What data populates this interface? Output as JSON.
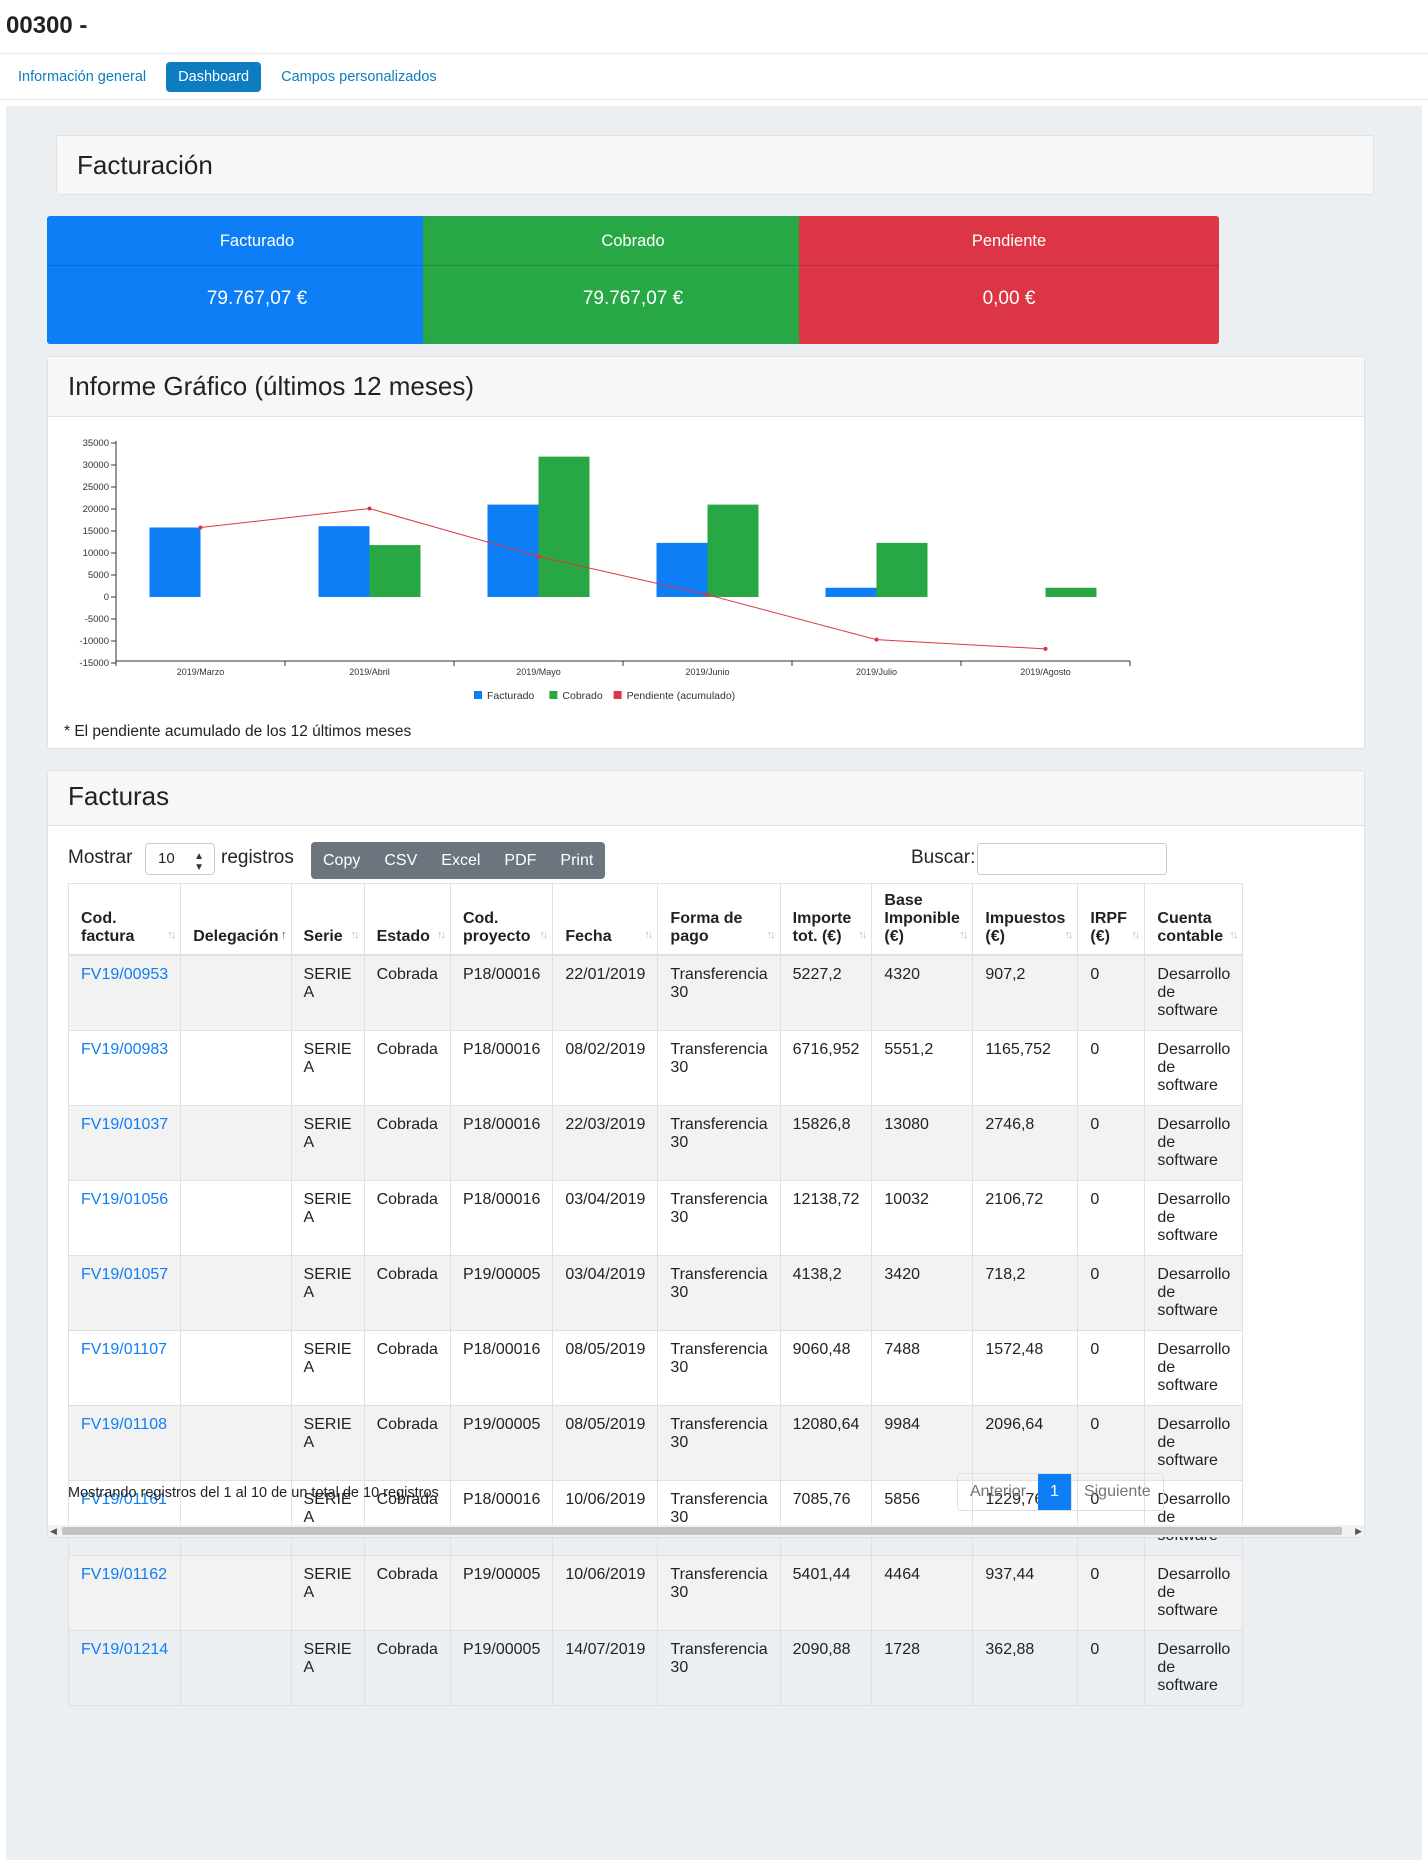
{
  "header": {
    "title": "00300 -"
  },
  "tabs": [
    {
      "label": "Información general",
      "active": false
    },
    {
      "label": "Dashboard",
      "active": true
    },
    {
      "label": "Campos personalizados",
      "active": false
    }
  ],
  "facturacion": {
    "title": "Facturación",
    "stats": [
      {
        "label": "Facturado",
        "value": "79.767,07 €",
        "color": "#0e7ef6"
      },
      {
        "label": "Cobrado",
        "value": "79.767,07 €",
        "color": "#27a844"
      },
      {
        "label": "Pendiente",
        "value": "0,00 €",
        "color": "#dc3545"
      }
    ]
  },
  "informe": {
    "title": "Informe Gráfico (últimos 12 meses)",
    "footnote": "* El pendiente acumulado de los 12 últimos meses"
  },
  "chart_data": {
    "type": "bar",
    "categories": [
      "2019/Marzo",
      "2019/Abril",
      "2019/Mayo",
      "2019/Junio",
      "2019/Julio",
      "2019/Agosto"
    ],
    "series": [
      {
        "name": "Facturado",
        "type": "bar",
        "color": "#0e7ef6",
        "values": [
          15800,
          16100,
          21000,
          12300,
          2100,
          0
        ]
      },
      {
        "name": "Cobrado",
        "type": "bar",
        "color": "#27a844",
        "values": [
          0,
          11800,
          31900,
          21000,
          12300,
          2100
        ]
      },
      {
        "name": "Pendiente (acumulado)",
        "type": "line",
        "color": "#dc3545",
        "values": [
          15800,
          20100,
          9200,
          500,
          -9700,
          -11800
        ]
      }
    ],
    "yticks": [
      35000,
      30000,
      25000,
      20000,
      15000,
      10000,
      5000,
      0,
      -5000,
      -10000,
      -15000
    ],
    "ylim": [
      -15000,
      35000
    ],
    "legend": "bottom"
  },
  "facturas": {
    "title": "Facturas",
    "show_label": "Mostrar",
    "page_size": "10",
    "records_label": "registros",
    "buttons": [
      "Copy",
      "CSV",
      "Excel",
      "PDF",
      "Print"
    ],
    "search_label": "Buscar:",
    "search_value": "",
    "columns": [
      {
        "l1": "Cod.",
        "l2": "factura"
      },
      {
        "l1": "",
        "l2": "Delegación"
      },
      {
        "l1": "",
        "l2": "Serie"
      },
      {
        "l1": "",
        "l2": "Estado"
      },
      {
        "l1": "Cod.",
        "l2": "proyecto"
      },
      {
        "l1": "",
        "l2": "Fecha"
      },
      {
        "l1": "Forma de",
        "l2": "pago"
      },
      {
        "l1": "Importe",
        "l2": "tot. (€)"
      },
      {
        "l1": "Base Imponible",
        "l2": "(€)"
      },
      {
        "l1": "Impuestos",
        "l2": "(€)"
      },
      {
        "l1": "IRPF",
        "l2": "(€)"
      },
      {
        "l1": "Cuenta",
        "l2": "contable"
      }
    ],
    "rows": [
      [
        "FV19/00953",
        "",
        "SERIE A",
        "Cobrada",
        "P18/00016",
        "22/01/2019",
        "Transferencia 30",
        "5227,2",
        "4320",
        "907,2",
        "0",
        "Desarrollo de software"
      ],
      [
        "FV19/00983",
        "",
        "SERIE A",
        "Cobrada",
        "P18/00016",
        "08/02/2019",
        "Transferencia 30",
        "6716,952",
        "5551,2",
        "1165,752",
        "0",
        "Desarrollo de software"
      ],
      [
        "FV19/01037",
        "",
        "SERIE A",
        "Cobrada",
        "P18/00016",
        "22/03/2019",
        "Transferencia 30",
        "15826,8",
        "13080",
        "2746,8",
        "0",
        "Desarrollo de software"
      ],
      [
        "FV19/01056",
        "",
        "SERIE A",
        "Cobrada",
        "P18/00016",
        "03/04/2019",
        "Transferencia 30",
        "12138,72",
        "10032",
        "2106,72",
        "0",
        "Desarrollo de software"
      ],
      [
        "FV19/01057",
        "",
        "SERIE A",
        "Cobrada",
        "P19/00005",
        "03/04/2019",
        "Transferencia 30",
        "4138,2",
        "3420",
        "718,2",
        "0",
        "Desarrollo de software"
      ],
      [
        "FV19/01107",
        "",
        "SERIE A",
        "Cobrada",
        "P18/00016",
        "08/05/2019",
        "Transferencia 30",
        "9060,48",
        "7488",
        "1572,48",
        "0",
        "Desarrollo de software"
      ],
      [
        "FV19/01108",
        "",
        "SERIE A",
        "Cobrada",
        "P19/00005",
        "08/05/2019",
        "Transferencia 30",
        "12080,64",
        "9984",
        "2096,64",
        "0",
        "Desarrollo de software"
      ],
      [
        "FV19/01161",
        "",
        "SERIE A",
        "Cobrada",
        "P18/00016",
        "10/06/2019",
        "Transferencia 30",
        "7085,76",
        "5856",
        "1229,76",
        "0",
        "Desarrollo de software"
      ],
      [
        "FV19/01162",
        "",
        "SERIE A",
        "Cobrada",
        "P19/00005",
        "10/06/2019",
        "Transferencia 30",
        "5401,44",
        "4464",
        "937,44",
        "0",
        "Desarrollo de software"
      ],
      [
        "FV19/01214",
        "",
        "SERIE A",
        "Cobrada",
        "P19/00005",
        "14/07/2019",
        "Transferencia 30",
        "2090,88",
        "1728",
        "362,88",
        "0",
        "Desarrollo de software"
      ]
    ],
    "info": "Mostrando registros del 1 al 10 de un total de 10 registros",
    "pager": {
      "prev": "Anterior",
      "current": "1",
      "next": "Siguiente"
    }
  }
}
